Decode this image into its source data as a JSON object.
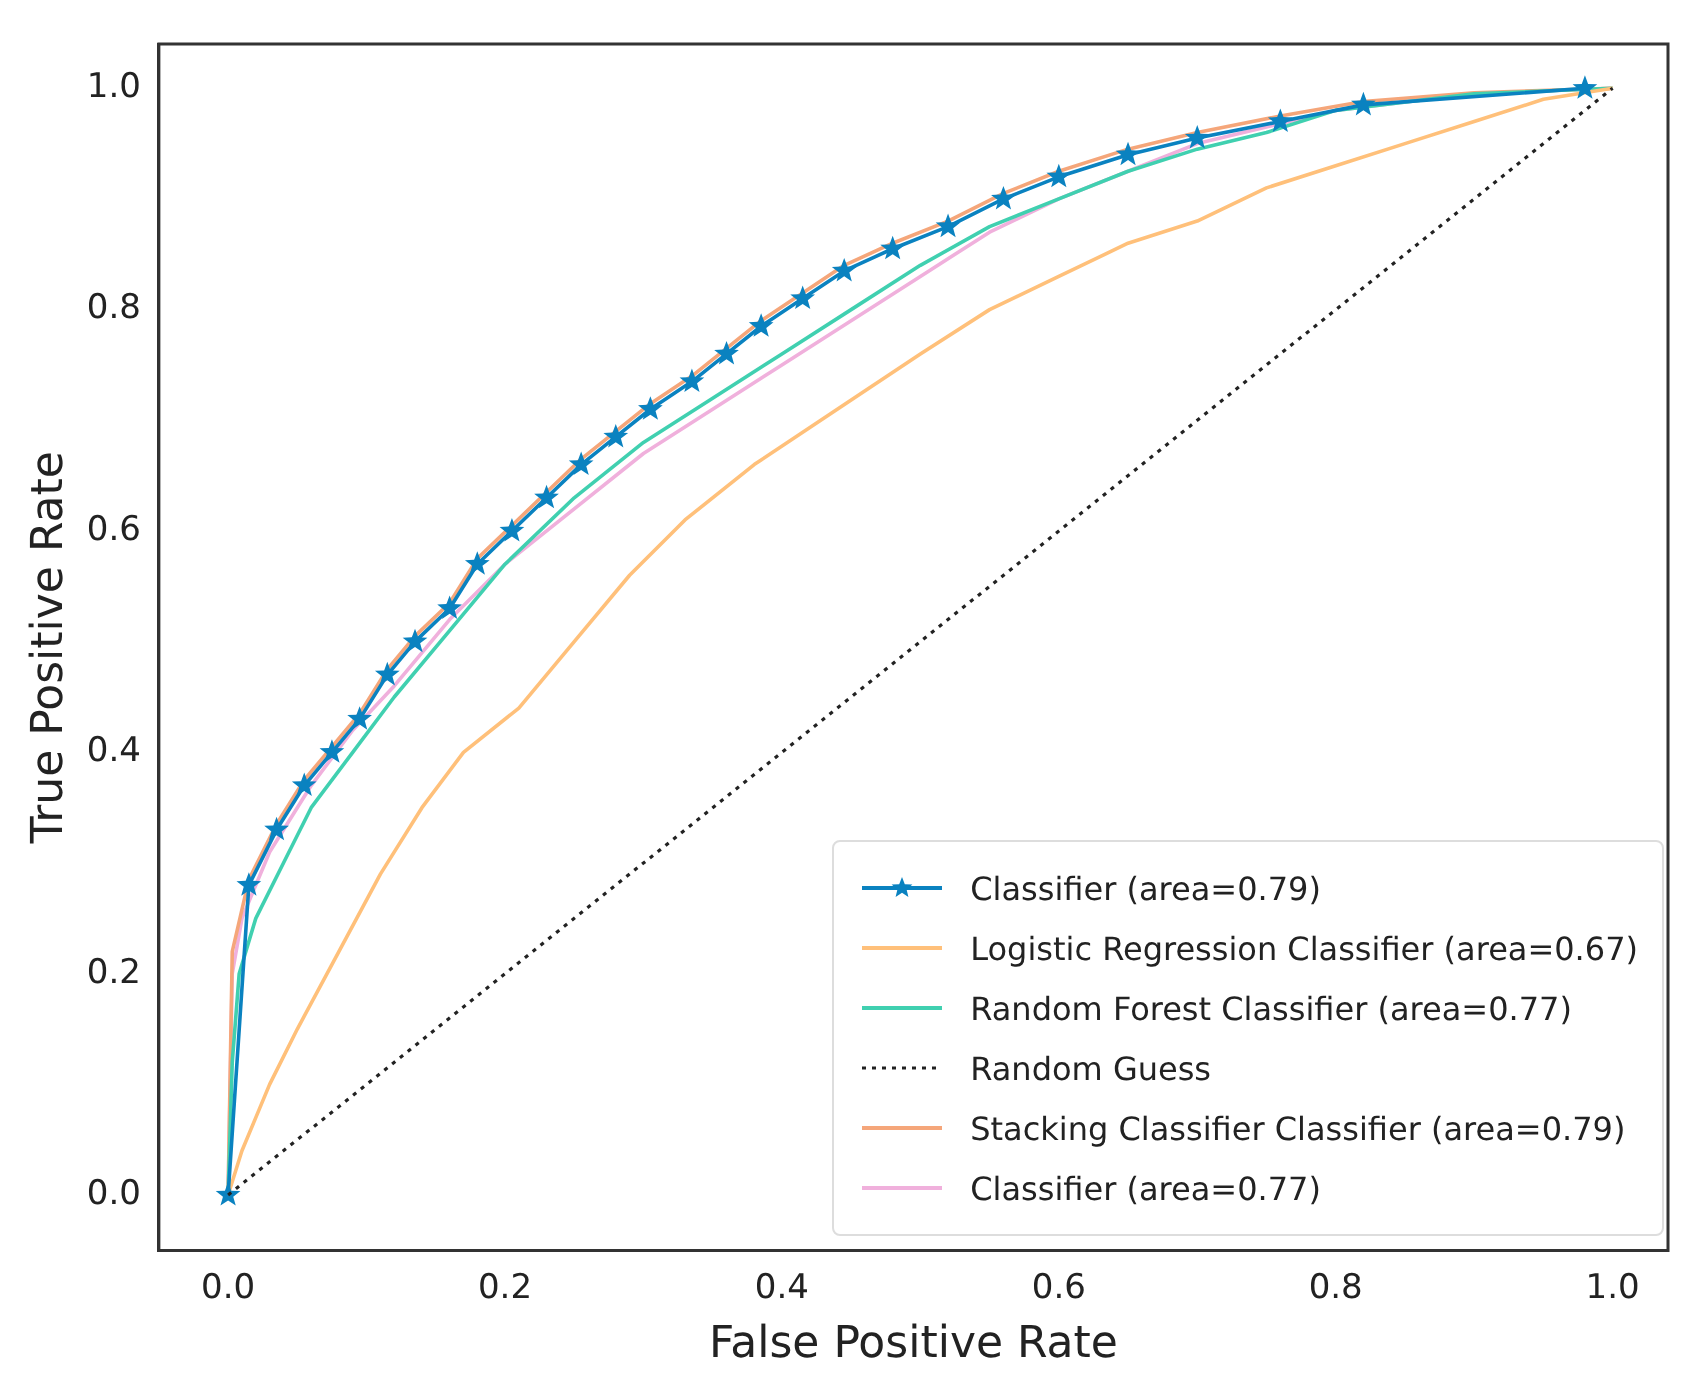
{
  "chart_data": {
    "type": "line",
    "xlabel": "False Positive Rate",
    "ylabel": "True Positive Rate",
    "xlim": [
      -0.05,
      1.04
    ],
    "ylim": [
      -0.05,
      1.04
    ],
    "xticks": [
      {
        "value": 0,
        "label": "0.0"
      },
      {
        "value": 0.2,
        "label": "0.2"
      },
      {
        "value": 0.4,
        "label": "0.4"
      },
      {
        "value": 0.6,
        "label": "0.6"
      },
      {
        "value": 0.8,
        "label": "0.8"
      },
      {
        "value": 1,
        "label": "1.0"
      }
    ],
    "yticks": [
      {
        "value": 0,
        "label": "0.0"
      },
      {
        "value": 0.2,
        "label": "0.2"
      },
      {
        "value": 0.4,
        "label": "0.4"
      },
      {
        "value": 0.6,
        "label": "0.6"
      },
      {
        "value": 0.8,
        "label": "0.8"
      },
      {
        "value": 1,
        "label": "1.0"
      }
    ],
    "grid": false,
    "legend": "bottom right",
    "series": [
      {
        "name": "Classifier (area=0.79)",
        "color": "#0a82c0",
        "marker": "star",
        "line_style": "solid",
        "x": [
          0,
          0.015,
          0.035,
          0.055,
          0.075,
          0.095,
          0.115,
          0.135,
          0.16,
          0.18,
          0.205,
          0.23,
          0.255,
          0.28,
          0.305,
          0.335,
          0.36,
          0.385,
          0.415,
          0.445,
          0.48,
          0.52,
          0.56,
          0.6,
          0.65,
          0.7,
          0.76,
          0.82,
          0.98
        ],
        "values": [
          0,
          0.28,
          0.33,
          0.37,
          0.4,
          0.43,
          0.47,
          0.5,
          0.53,
          0.57,
          0.6,
          0.63,
          0.66,
          0.685,
          0.71,
          0.735,
          0.76,
          0.785,
          0.81,
          0.835,
          0.855,
          0.875,
          0.9,
          0.92,
          0.94,
          0.955,
          0.97,
          0.985,
          1
        ]
      },
      {
        "name": "Logistic Regression Classifier (area=0.67)",
        "color": "#ffc07a",
        "marker": "none",
        "line_style": "solid",
        "x": [
          0,
          0.01,
          0.03,
          0.05,
          0.08,
          0.11,
          0.14,
          0.17,
          0.21,
          0.25,
          0.29,
          0.33,
          0.38,
          0.44,
          0.5,
          0.55,
          0.6,
          0.65,
          0.7,
          0.75,
          0.8,
          0.85,
          0.9,
          0.95,
          1
        ],
        "values": [
          0,
          0.04,
          0.1,
          0.15,
          0.22,
          0.29,
          0.35,
          0.4,
          0.44,
          0.5,
          0.56,
          0.61,
          0.66,
          0.71,
          0.76,
          0.8,
          0.83,
          0.86,
          0.88,
          0.91,
          0.93,
          0.95,
          0.97,
          0.99,
          1
        ]
      },
      {
        "name": "Random Forest Classifier (area=0.77)",
        "color": "#40d0b0",
        "marker": "none",
        "line_style": "solid",
        "x": [
          0,
          0.003,
          0.008,
          0.02,
          0.04,
          0.06,
          0.09,
          0.12,
          0.16,
          0.2,
          0.25,
          0.3,
          0.35,
          0.4,
          0.45,
          0.5,
          0.55,
          0.6,
          0.65,
          0.7,
          0.75,
          0.8,
          0.9,
          1
        ],
        "values": [
          0,
          0.12,
          0.2,
          0.25,
          0.3,
          0.35,
          0.4,
          0.45,
          0.51,
          0.57,
          0.63,
          0.68,
          0.72,
          0.76,
          0.8,
          0.84,
          0.875,
          0.9,
          0.925,
          0.945,
          0.96,
          0.98,
          0.995,
          1
        ]
      },
      {
        "name": "Random Guess",
        "color": "#222222",
        "marker": "none",
        "line_style": "dotted",
        "x": [
          0,
          1
        ],
        "values": [
          0,
          1
        ]
      },
      {
        "name": "Stacking Classifier Classifier (area=0.79)",
        "color": "#f5a67a",
        "marker": "none",
        "line_style": "solid",
        "x": [
          0,
          0.003,
          0.015,
          0.035,
          0.055,
          0.075,
          0.095,
          0.115,
          0.135,
          0.16,
          0.18,
          0.205,
          0.23,
          0.255,
          0.28,
          0.305,
          0.335,
          0.36,
          0.385,
          0.415,
          0.445,
          0.48,
          0.52,
          0.56,
          0.6,
          0.65,
          0.7,
          0.76,
          0.82,
          0.9,
          1
        ],
        "values": [
          0,
          0.22,
          0.285,
          0.335,
          0.375,
          0.405,
          0.435,
          0.475,
          0.505,
          0.535,
          0.575,
          0.605,
          0.635,
          0.665,
          0.69,
          0.715,
          0.74,
          0.765,
          0.79,
          0.815,
          0.84,
          0.86,
          0.88,
          0.905,
          0.925,
          0.945,
          0.96,
          0.975,
          0.988,
          0.996,
          1
        ]
      },
      {
        "name": "Classifier (area=0.77)",
        "color": "#f0b0dc",
        "marker": "none",
        "line_style": "solid",
        "x": [
          0,
          0.003,
          0.01,
          0.03,
          0.06,
          0.09,
          0.12,
          0.16,
          0.2,
          0.25,
          0.3,
          0.35,
          0.4,
          0.45,
          0.5,
          0.55,
          0.6,
          0.65,
          0.7,
          0.75,
          0.8,
          0.9,
          1
        ],
        "values": [
          0,
          0.2,
          0.25,
          0.31,
          0.37,
          0.42,
          0.46,
          0.52,
          0.57,
          0.62,
          0.67,
          0.71,
          0.75,
          0.79,
          0.83,
          0.87,
          0.9,
          0.925,
          0.95,
          0.965,
          0.98,
          0.995,
          1
        ]
      }
    ]
  }
}
